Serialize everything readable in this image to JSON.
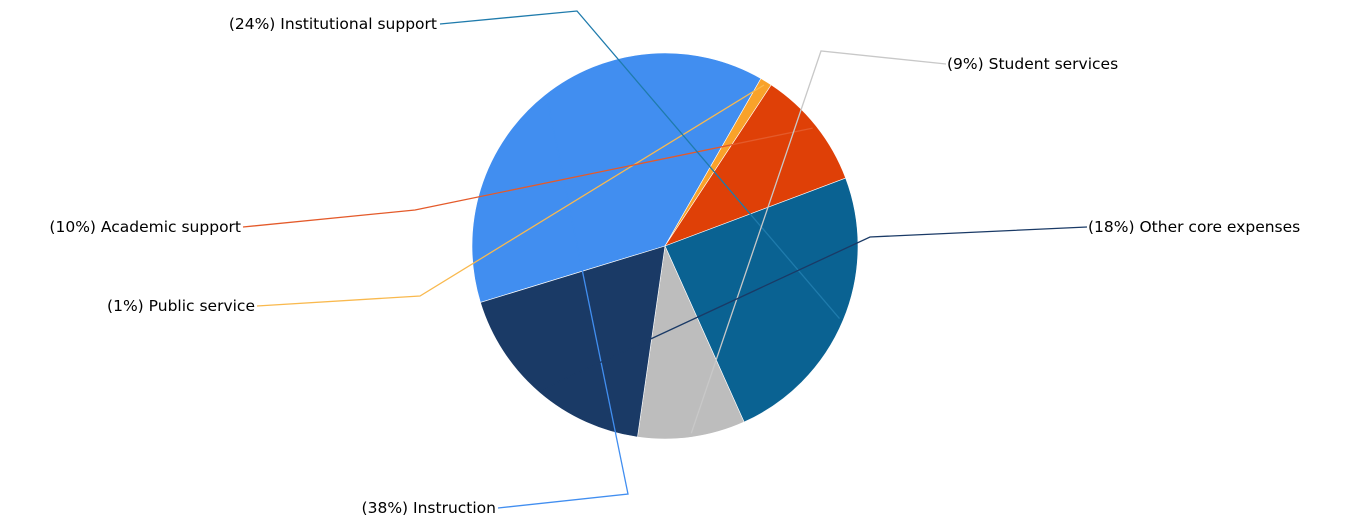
{
  "chart_data": {
    "type": "pie",
    "title": "",
    "slices": [
      {
        "label": "Instruction",
        "value": 38,
        "percent_text": "(38%)",
        "color": "#418EF0",
        "leader_color": "#418EF0"
      },
      {
        "label": "Public service",
        "value": 1,
        "percent_text": "(1%)",
        "color": "#F9A22A",
        "leader_color": "#F9B94E"
      },
      {
        "label": "Academic support",
        "value": 10,
        "percent_text": "(10%)",
        "color": "#DF4007",
        "leader_color": "#E45A2A"
      },
      {
        "label": "Institutional support",
        "value": 24,
        "percent_text": "(24%)",
        "color": "#0A6292",
        "leader_color": "#1F7BAC"
      },
      {
        "label": "Student services",
        "value": 9,
        "percent_text": "(9%)",
        "color": "#BDBDBD",
        "leader_color": "#C8C8C8"
      },
      {
        "label": "Other core expenses",
        "value": 18,
        "percent_text": "(18%)",
        "color": "#1A3A66",
        "leader_color": "#1A3A66"
      }
    ],
    "legend": "none",
    "label_style": "outside-with-leader-lines"
  }
}
